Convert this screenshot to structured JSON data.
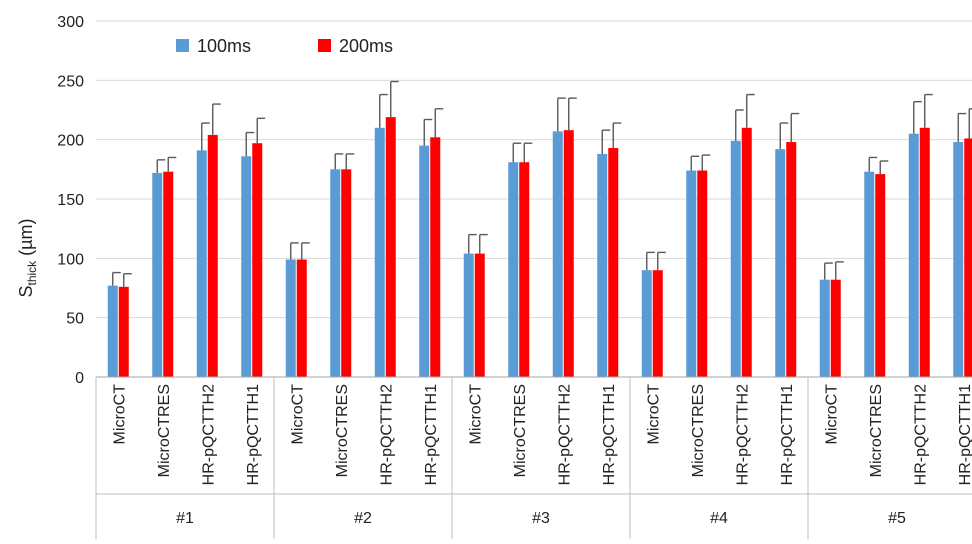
{
  "chart_data": {
    "type": "bar",
    "ylabel_main": "S",
    "ylabel_sub": "thick",
    "ylabel_unit": " (µm)",
    "ylim": [
      0,
      300
    ],
    "yticks": [
      0,
      50,
      100,
      150,
      200,
      250,
      300
    ],
    "grid": true,
    "legend_position": "top-left",
    "groups": [
      "#1",
      "#2",
      "#3",
      "#4",
      "#5"
    ],
    "subcategories": [
      "MicroCT",
      "MicroCTRES",
      "HR-pQCTTH2",
      "HR-pQCTTH1"
    ],
    "series": [
      {
        "name": "100ms",
        "color": "#5b9bd5",
        "values": [
          77,
          172,
          191,
          186,
          99,
          175,
          210,
          195,
          104,
          181,
          207,
          188,
          90,
          174,
          199,
          192,
          82,
          173,
          205,
          198
        ],
        "errors": [
          11,
          11,
          23,
          20,
          14,
          13,
          28,
          22,
          16,
          16,
          28,
          20,
          15,
          12,
          26,
          22,
          14,
          12,
          27,
          24
        ]
      },
      {
        "name": "200ms",
        "color": "#ff0000",
        "values": [
          76,
          173,
          204,
          197,
          99,
          175,
          219,
          202,
          104,
          181,
          208,
          193,
          90,
          174,
          210,
          198,
          82,
          171,
          210,
          201
        ],
        "errors": [
          11,
          12,
          26,
          21,
          14,
          13,
          30,
          24,
          16,
          16,
          27,
          21,
          15,
          13,
          28,
          24,
          15,
          11,
          28,
          25
        ]
      }
    ]
  }
}
